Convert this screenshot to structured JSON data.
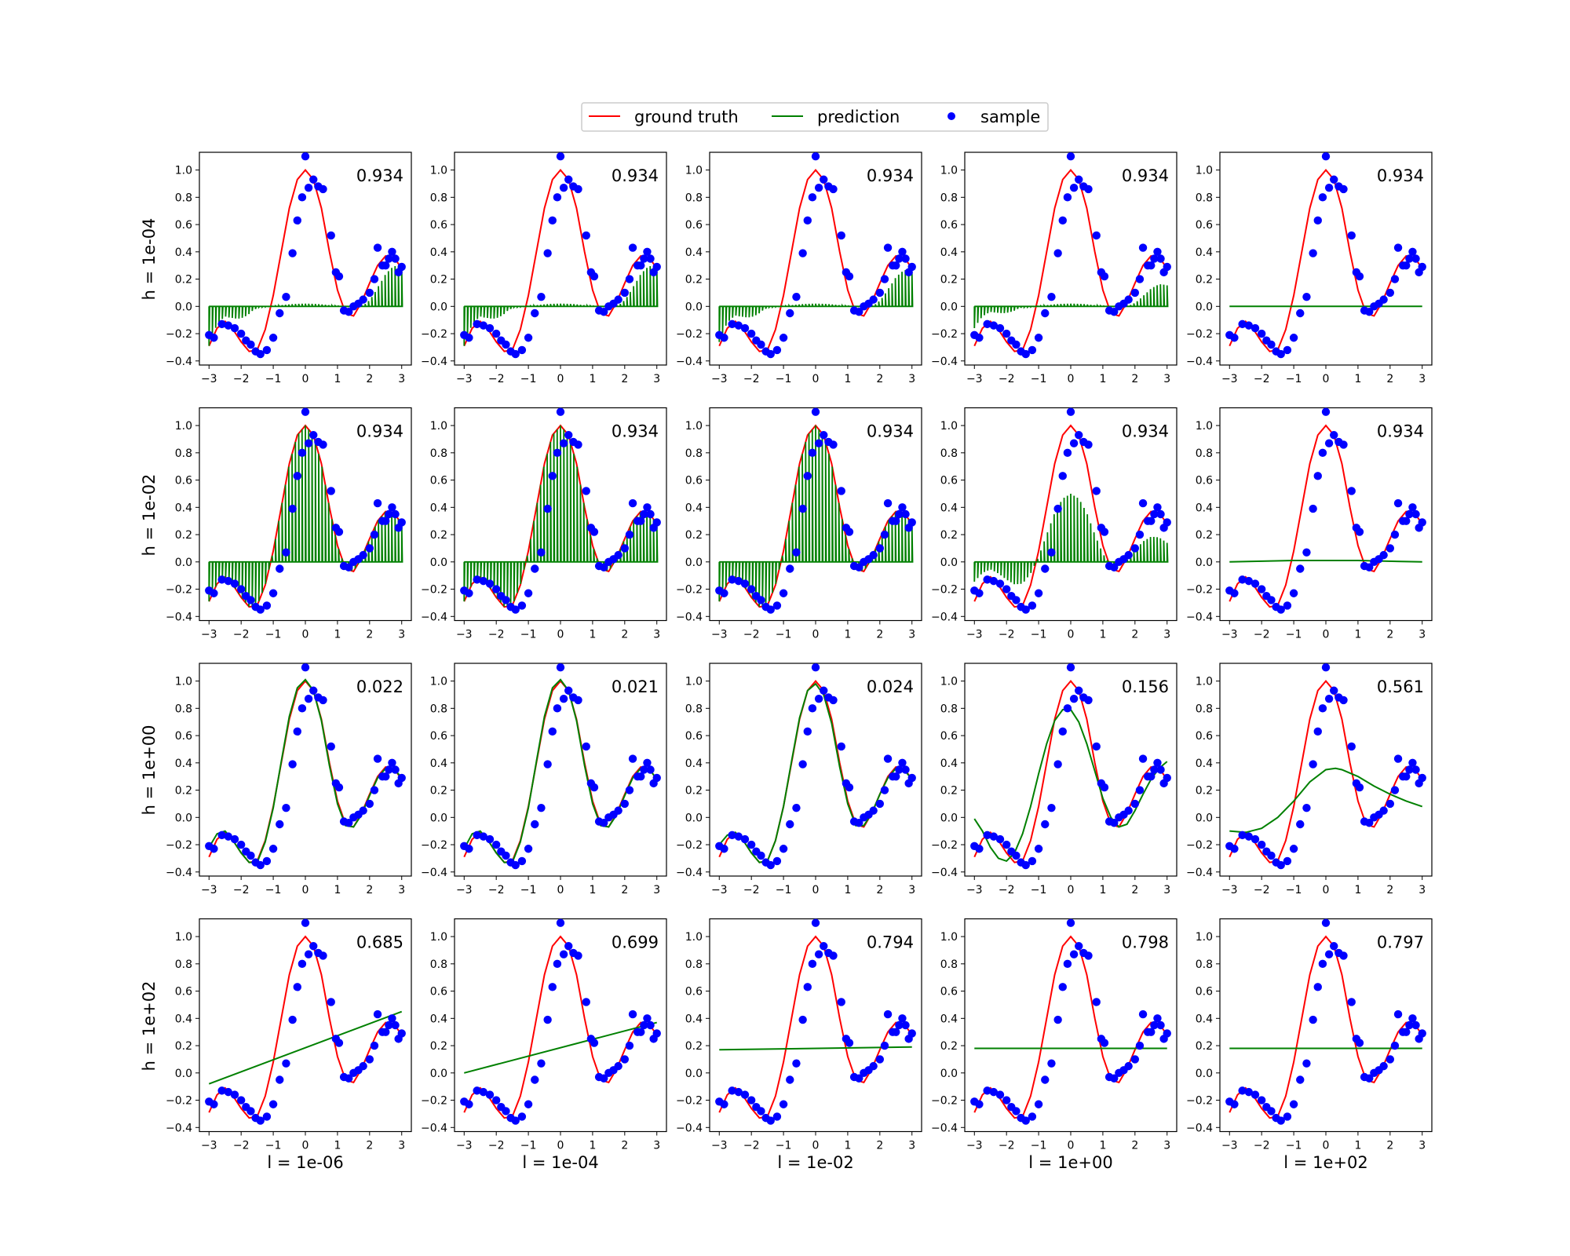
{
  "legend": {
    "items": [
      {
        "label": "ground truth",
        "color": "#ff0000",
        "kind": "line"
      },
      {
        "label": "prediction",
        "color": "#008000",
        "kind": "line"
      },
      {
        "label": "sample",
        "color": "#0000ff",
        "kind": "marker"
      }
    ]
  },
  "row_labels": [
    "h = 1e-04",
    "h = 1e-02",
    "h = 1e+00",
    "h = 1e+02"
  ],
  "col_labels": [
    "l = 1e-06",
    "l = 1e-04",
    "l = 1e-02",
    "l = 1e+00",
    "l = 1e+02"
  ],
  "scores": [
    [
      "0.934",
      "0.934",
      "0.934",
      "0.934",
      "0.934"
    ],
    [
      "0.934",
      "0.934",
      "0.934",
      "0.934",
      "0.934"
    ],
    [
      "0.022",
      "0.021",
      "0.024",
      "0.156",
      "0.561"
    ],
    [
      "0.685",
      "0.699",
      "0.794",
      "0.798",
      "0.797"
    ]
  ],
  "chart_data": {
    "type": "line",
    "grid": false,
    "legend_position": "top-center",
    "xlim": [
      -3.3,
      3.3
    ],
    "ylim": [
      -0.43,
      1.13
    ],
    "x_ticks": [
      -3,
      -2,
      -1,
      0,
      1,
      2,
      3
    ],
    "y_ticks": [
      -0.4,
      -0.2,
      0.0,
      0.2,
      0.4,
      0.6,
      0.8,
      1.0
    ],
    "x_tick_labels": [
      "−3",
      "−2",
      "−1",
      "0",
      "1",
      "2",
      "3"
    ],
    "y_tick_labels": [
      "−0.4",
      "−0.2",
      "0.0",
      "0.2",
      "0.4",
      "0.6",
      "0.8",
      "1.0"
    ],
    "ground_truth": {
      "x": [
        -3.0,
        -2.75,
        -2.5,
        -2.25,
        -2.0,
        -1.75,
        -1.5,
        -1.25,
        -1.0,
        -0.75,
        -0.5,
        -0.25,
        0.0,
        0.25,
        0.5,
        0.75,
        1.0,
        1.25,
        1.5,
        1.75,
        2.0,
        2.25,
        2.5,
        2.75,
        3.0
      ],
      "y": [
        -0.29,
        -0.16,
        -0.11,
        -0.17,
        -0.26,
        -0.33,
        -0.32,
        -0.17,
        0.08,
        0.4,
        0.72,
        0.93,
        1.0,
        0.93,
        0.72,
        0.4,
        0.12,
        -0.05,
        -0.07,
        0.03,
        0.17,
        0.3,
        0.37,
        0.36,
        0.28
      ]
    },
    "samples": {
      "x": [
        -3.0,
        -2.85,
        -2.6,
        -2.4,
        -2.2,
        -2.0,
        -1.85,
        -1.7,
        -1.55,
        -1.4,
        -1.2,
        -1.0,
        -0.8,
        -0.6,
        -0.4,
        -0.25,
        -0.1,
        0.0,
        0.1,
        0.25,
        0.4,
        0.55,
        0.8,
        0.95,
        1.05,
        1.2,
        1.35,
        1.5,
        1.65,
        1.8,
        2.0,
        2.15,
        2.25,
        2.4,
        2.5,
        2.6,
        2.7,
        2.8,
        2.9,
        3.0
      ],
      "y": [
        -0.21,
        -0.23,
        -0.13,
        -0.14,
        -0.16,
        -0.2,
        -0.25,
        -0.28,
        -0.33,
        -0.35,
        -0.32,
        -0.23,
        -0.05,
        0.07,
        0.39,
        0.63,
        0.8,
        1.1,
        0.87,
        0.93,
        0.88,
        0.86,
        0.52,
        0.25,
        0.22,
        -0.03,
        -0.04,
        0.0,
        0.02,
        0.05,
        0.1,
        0.2,
        0.43,
        0.3,
        0.3,
        0.35,
        0.4,
        0.35,
        0.25,
        0.29
      ]
    },
    "panels": [
      [
        {
          "pred_type": "spikes",
          "amp": 1.0,
          "side": "edges"
        },
        {
          "pred_type": "spikes",
          "amp": 1.0,
          "side": "edges"
        },
        {
          "pred_type": "spikes",
          "amp": 0.9,
          "side": "edges"
        },
        {
          "pred_type": "spikes",
          "amp": 0.55,
          "side": "edges"
        },
        {
          "pred_type": "line",
          "x": [
            -3,
            3
          ],
          "y": [
            0.0,
            0.0
          ]
        }
      ],
      [
        {
          "pred_type": "spikes",
          "amp": 1.0,
          "side": "all"
        },
        {
          "pred_type": "spikes",
          "amp": 1.0,
          "side": "all"
        },
        {
          "pred_type": "spikes",
          "amp": 1.0,
          "side": "all"
        },
        {
          "pred_type": "spikes",
          "amp": 0.5,
          "side": "all"
        },
        {
          "pred_type": "line",
          "x": [
            -3,
            -1,
            0,
            1,
            3
          ],
          "y": [
            0.0,
            0.01,
            0.01,
            0.01,
            0.0
          ]
        }
      ],
      [
        {
          "pred_type": "line",
          "x": [
            -3.0,
            -2.75,
            -2.5,
            -2.25,
            -2.0,
            -1.75,
            -1.5,
            -1.25,
            -1.0,
            -0.75,
            -0.5,
            -0.25,
            0.0,
            0.25,
            0.5,
            0.75,
            1.0,
            1.25,
            1.5,
            1.75,
            2.0,
            2.25,
            2.5,
            2.75,
            3.0
          ],
          "y": [
            -0.22,
            -0.12,
            -0.1,
            -0.17,
            -0.26,
            -0.33,
            -0.33,
            -0.18,
            0.07,
            0.41,
            0.74,
            0.95,
            1.01,
            0.93,
            0.71,
            0.38,
            0.1,
            -0.06,
            -0.07,
            0.02,
            0.16,
            0.29,
            0.36,
            0.36,
            0.29
          ]
        },
        {
          "pred_type": "line",
          "x": [
            -3.0,
            -2.75,
            -2.5,
            -2.25,
            -2.0,
            -1.75,
            -1.5,
            -1.25,
            -1.0,
            -0.75,
            -0.5,
            -0.25,
            0.0,
            0.25,
            0.5,
            0.75,
            1.0,
            1.25,
            1.5,
            1.75,
            2.0,
            2.25,
            2.5,
            2.75,
            3.0
          ],
          "y": [
            -0.23,
            -0.12,
            -0.1,
            -0.17,
            -0.26,
            -0.33,
            -0.33,
            -0.18,
            0.07,
            0.41,
            0.74,
            0.95,
            1.01,
            0.93,
            0.71,
            0.38,
            0.1,
            -0.06,
            -0.07,
            0.02,
            0.16,
            0.29,
            0.36,
            0.36,
            0.28
          ]
        },
        {
          "pred_type": "line",
          "x": [
            -3.0,
            -2.75,
            -2.5,
            -2.25,
            -2.0,
            -1.75,
            -1.5,
            -1.25,
            -1.0,
            -0.75,
            -0.5,
            -0.25,
            0.0,
            0.25,
            0.5,
            0.75,
            1.0,
            1.25,
            1.5,
            1.75,
            2.0,
            2.25,
            2.5,
            2.75,
            3.0
          ],
          "y": [
            -0.2,
            -0.13,
            -0.11,
            -0.17,
            -0.26,
            -0.33,
            -0.32,
            -0.17,
            0.08,
            0.41,
            0.73,
            0.93,
            0.98,
            0.9,
            0.69,
            0.37,
            0.1,
            -0.06,
            -0.06,
            0.03,
            0.17,
            0.29,
            0.36,
            0.35,
            0.28
          ]
        },
        {
          "pred_type": "line",
          "x": [
            -3.0,
            -2.75,
            -2.5,
            -2.25,
            -2.0,
            -1.75,
            -1.5,
            -1.25,
            -1.0,
            -0.75,
            -0.5,
            -0.25,
            0.0,
            0.25,
            0.5,
            0.75,
            1.0,
            1.25,
            1.5,
            1.75,
            2.0,
            2.25,
            2.5,
            2.75,
            3.0
          ],
          "y": [
            -0.01,
            -0.1,
            -0.22,
            -0.3,
            -0.32,
            -0.26,
            -0.12,
            0.08,
            0.32,
            0.54,
            0.71,
            0.79,
            0.79,
            0.7,
            0.54,
            0.34,
            0.14,
            0.0,
            -0.07,
            -0.05,
            0.05,
            0.17,
            0.28,
            0.36,
            0.41
          ]
        },
        {
          "pred_type": "line",
          "x": [
            -3.0,
            -2.5,
            -2.0,
            -1.5,
            -1.0,
            -0.5,
            0.0,
            0.3,
            0.5,
            1.0,
            1.5,
            2.0,
            2.5,
            3.0
          ],
          "y": [
            -0.1,
            -0.11,
            -0.08,
            0.0,
            0.12,
            0.26,
            0.35,
            0.36,
            0.35,
            0.3,
            0.23,
            0.17,
            0.12,
            0.08
          ]
        }
      ],
      [
        {
          "pred_type": "line",
          "x": [
            -3,
            3
          ],
          "y": [
            -0.08,
            0.45
          ]
        },
        {
          "pred_type": "line",
          "x": [
            -3,
            3
          ],
          "y": [
            0.0,
            0.37
          ]
        },
        {
          "pred_type": "line",
          "x": [
            -3,
            3
          ],
          "y": [
            0.17,
            0.19
          ]
        },
        {
          "pred_type": "line",
          "x": [
            -3,
            3
          ],
          "y": [
            0.18,
            0.18
          ]
        },
        {
          "pred_type": "line",
          "x": [
            -3,
            3
          ],
          "y": [
            0.18,
            0.18
          ]
        }
      ]
    ]
  }
}
